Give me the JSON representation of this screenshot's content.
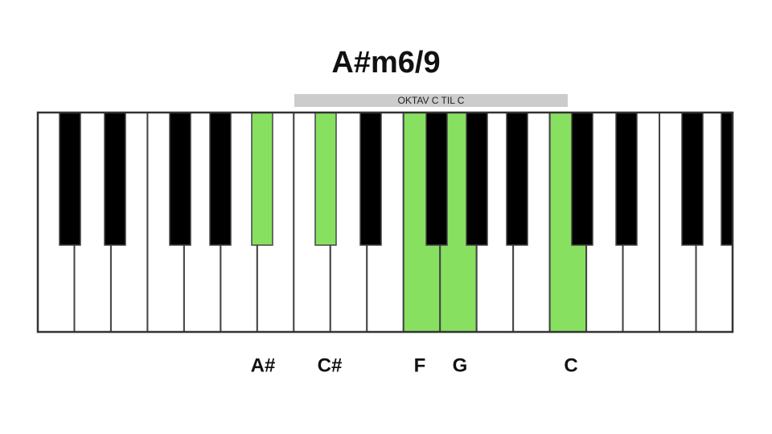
{
  "header": {
    "title": "A#m6/9",
    "octave_label": "OKTAV C TIL C"
  },
  "notes": [
    {
      "label": "A#"
    },
    {
      "label": "C#"
    },
    {
      "label": "F"
    },
    {
      "label": "G"
    },
    {
      "label": "C"
    }
  ]
}
